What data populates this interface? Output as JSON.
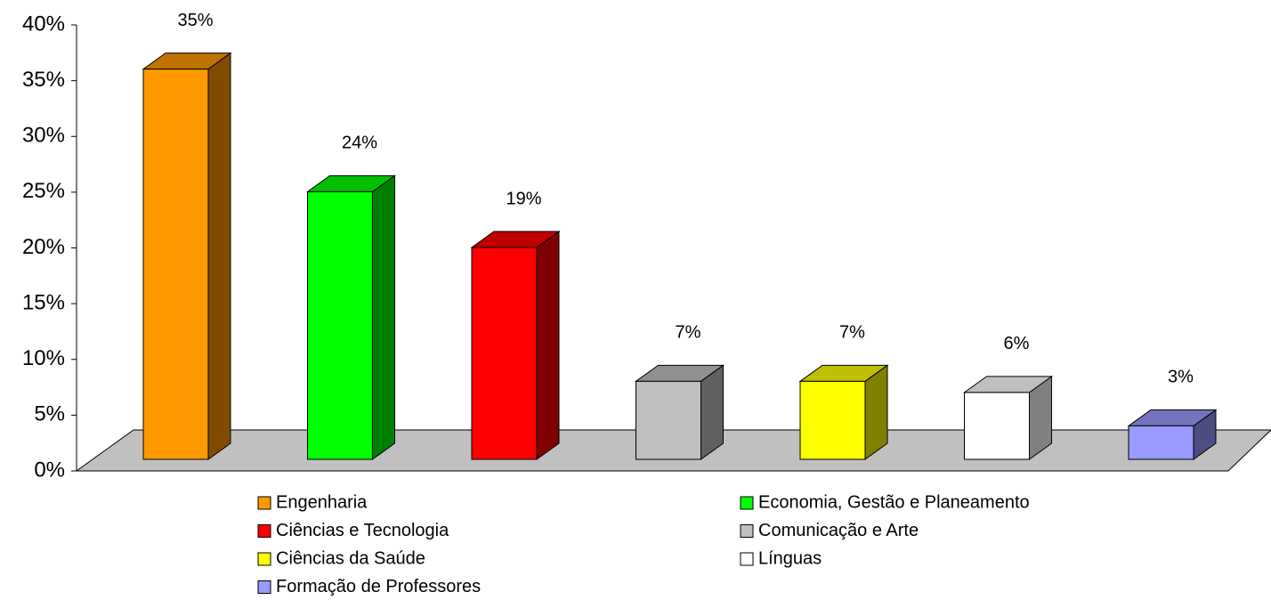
{
  "chart_data": {
    "type": "bar3d",
    "categories": [
      "Engenharia",
      "Economia, Gestão e Planeamento",
      "Ciências e Tecnologia",
      "Comunicação e Arte",
      "Ciências da Saúde",
      "Línguas",
      "Formação de Professores"
    ],
    "values": [
      35,
      24,
      19,
      7,
      7,
      6,
      3
    ],
    "value_labels": [
      "35%",
      "24%",
      "19%",
      "7%",
      "7%",
      "6%",
      "3%"
    ],
    "colors": [
      "#ff9900",
      "#00ff00",
      "#ff0000",
      "#c0c0c0",
      "#ffff00",
      "#ffffff",
      "#9999ff"
    ],
    "ylim": [
      0,
      40
    ],
    "yticks": [
      {
        "value": 0,
        "label": "0%"
      },
      {
        "value": 5,
        "label": "5%"
      },
      {
        "value": 10,
        "label": "10%"
      },
      {
        "value": 15,
        "label": "15%"
      },
      {
        "value": 20,
        "label": "20%"
      },
      {
        "value": 25,
        "label": "25%"
      },
      {
        "value": 30,
        "label": "30%"
      },
      {
        "value": 35,
        "label": "35%"
      },
      {
        "value": 40,
        "label": "40%"
      }
    ],
    "legend": "bottom"
  }
}
